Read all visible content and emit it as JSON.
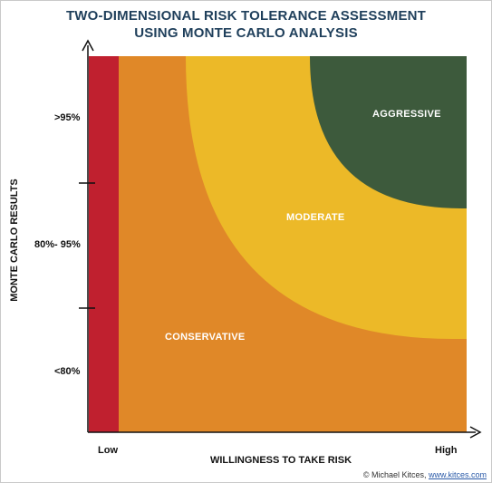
{
  "title": {
    "line1": "TWO-DIMENSIONAL RISK TOLERANCE ASSESSMENT",
    "line2": "USING MONTE CARLO ANALYSIS"
  },
  "axes": {
    "y_label": "MONTE CARLO RESULTS",
    "x_label": "WILLINGNESS TO TAKE RISK",
    "y_ticks": [
      ">95%",
      "80%- 95%",
      "<80%"
    ],
    "x_ticks": [
      "Low",
      "High"
    ]
  },
  "regions": {
    "aggressive": "AGGRESSIVE",
    "moderate": "MODERATE",
    "conservative": "CONSERVATIVE"
  },
  "colors": {
    "red": "#c0202f",
    "orange": "#e08828",
    "yellow": "#ecb928",
    "green": "#3d5a3c",
    "title": "#1f3f5b"
  },
  "credit": {
    "text": "© Michael Kitces, ",
    "link": "www.kitces.com"
  }
}
